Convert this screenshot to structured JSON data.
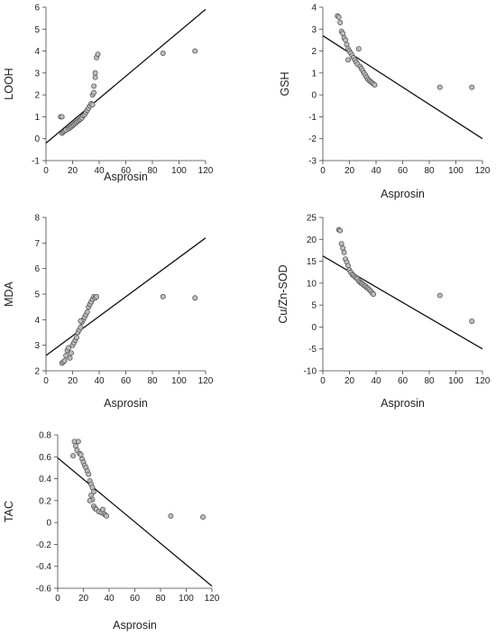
{
  "chart_data": [
    {
      "type": "scatter",
      "xlabel": "Asprosin",
      "ylabel": "LOOH",
      "xlim": [
        0,
        120
      ],
      "ylim": [
        -1,
        6
      ],
      "xticks": [
        0,
        20,
        40,
        60,
        80,
        100,
        120
      ],
      "yticks": [
        -1,
        0,
        1,
        2,
        3,
        4,
        5,
        6
      ],
      "fit_line": [
        [
          0,
          -0.2
        ],
        [
          120,
          5.9
        ]
      ],
      "points": [
        [
          11,
          1.0
        ],
        [
          12,
          1.0
        ],
        [
          12,
          0.25
        ],
        [
          13,
          0.3
        ],
        [
          14,
          0.35
        ],
        [
          15,
          0.4
        ],
        [
          17,
          0.45
        ],
        [
          18,
          0.5
        ],
        [
          19,
          0.55
        ],
        [
          20,
          0.6
        ],
        [
          21,
          0.65
        ],
        [
          22,
          0.7
        ],
        [
          23,
          0.75
        ],
        [
          24,
          0.8
        ],
        [
          25,
          0.85
        ],
        [
          26,
          0.9
        ],
        [
          27,
          0.95
        ],
        [
          28,
          1.05
        ],
        [
          29,
          1.1
        ],
        [
          30,
          1.2
        ],
        [
          31,
          1.3
        ],
        [
          32,
          1.4
        ],
        [
          33,
          1.5
        ],
        [
          34,
          1.6
        ],
        [
          35,
          2.0
        ],
        [
          35,
          1.55
        ],
        [
          36,
          2.1
        ],
        [
          36,
          2.4
        ],
        [
          37,
          2.8
        ],
        [
          37,
          3.0
        ],
        [
          38,
          3.7
        ],
        [
          39,
          3.85
        ],
        [
          88,
          3.9
        ],
        [
          112,
          4.0
        ]
      ]
    },
    {
      "type": "scatter",
      "xlabel": "Asprosin",
      "ylabel": "GSH",
      "xlim": [
        0,
        120
      ],
      "ylim": [
        -3,
        4
      ],
      "xticks": [
        0,
        20,
        40,
        60,
        80,
        100,
        120
      ],
      "yticks": [
        -3,
        -2,
        -1,
        0,
        1,
        2,
        3,
        4
      ],
      "fit_line": [
        [
          0,
          2.7
        ],
        [
          120,
          -2.0
        ]
      ],
      "points": [
        [
          11,
          3.6
        ],
        [
          12,
          3.55
        ],
        [
          13,
          3.3
        ],
        [
          14,
          2.9
        ],
        [
          15,
          2.8
        ],
        [
          16,
          2.6
        ],
        [
          17,
          2.5
        ],
        [
          18,
          2.3
        ],
        [
          19,
          2.1
        ],
        [
          20,
          2.0
        ],
        [
          21,
          1.9
        ],
        [
          22,
          1.8
        ],
        [
          23,
          1.7
        ],
        [
          24,
          1.6
        ],
        [
          25,
          1.5
        ],
        [
          26,
          1.4
        ],
        [
          27,
          2.1
        ],
        [
          28,
          1.3
        ],
        [
          29,
          1.2
        ],
        [
          30,
          1.1
        ],
        [
          31,
          1.0
        ],
        [
          32,
          0.9
        ],
        [
          33,
          0.8
        ],
        [
          34,
          0.7
        ],
        [
          35,
          0.65
        ],
        [
          36,
          0.6
        ],
        [
          37,
          0.55
        ],
        [
          38,
          0.5
        ],
        [
          39,
          0.45
        ],
        [
          19,
          1.6
        ],
        [
          88,
          0.35
        ],
        [
          112,
          0.35
        ]
      ]
    },
    {
      "type": "scatter",
      "xlabel": "Asprosin",
      "ylabel": "MDA",
      "xlim": [
        0,
        120
      ],
      "ylim": [
        2,
        8
      ],
      "xticks": [
        0,
        20,
        40,
        60,
        80,
        100,
        120
      ],
      "yticks": [
        2,
        3,
        4,
        5,
        6,
        7,
        8
      ],
      "fit_line": [
        [
          0,
          2.6
        ],
        [
          120,
          7.2
        ]
      ],
      "points": [
        [
          12,
          2.3
        ],
        [
          13,
          2.35
        ],
        [
          14,
          2.4
        ],
        [
          15,
          2.6
        ],
        [
          16,
          2.8
        ],
        [
          17,
          2.9
        ],
        [
          18,
          2.5
        ],
        [
          19,
          2.7
        ],
        [
          20,
          3.0
        ],
        [
          21,
          3.1
        ],
        [
          22,
          3.2
        ],
        [
          23,
          3.3
        ],
        [
          24,
          3.5
        ],
        [
          25,
          3.6
        ],
        [
          26,
          3.7
        ],
        [
          27,
          3.9
        ],
        [
          28,
          4.0
        ],
        [
          29,
          4.1
        ],
        [
          30,
          4.2
        ],
        [
          31,
          4.3
        ],
        [
          32,
          4.5
        ],
        [
          33,
          4.6
        ],
        [
          34,
          4.7
        ],
        [
          35,
          4.8
        ],
        [
          36,
          4.9
        ],
        [
          37,
          4.85
        ],
        [
          38,
          4.9
        ],
        [
          26,
          3.95
        ],
        [
          88,
          4.9
        ],
        [
          112,
          4.85
        ]
      ]
    },
    {
      "type": "scatter",
      "xlabel": "Asprosin",
      "ylabel": "Cu/Zn-SOD",
      "xlim": [
        0,
        120
      ],
      "ylim": [
        -10,
        25
      ],
      "xticks": [
        0,
        20,
        40,
        60,
        80,
        100,
        120
      ],
      "yticks": [
        -10,
        -5,
        0,
        5,
        10,
        15,
        20,
        25
      ],
      "fit_line": [
        [
          0,
          16.2
        ],
        [
          120,
          -5.0
        ]
      ],
      "points": [
        [
          12,
          22.2
        ],
        [
          13,
          22.0
        ],
        [
          14,
          19.0
        ],
        [
          15,
          18.0
        ],
        [
          16,
          17.0
        ],
        [
          17,
          15.5
        ],
        [
          18,
          14.8
        ],
        [
          19,
          14.0
        ],
        [
          20,
          13.0
        ],
        [
          21,
          12.5
        ],
        [
          22,
          12.0
        ],
        [
          23,
          11.8
        ],
        [
          24,
          11.5
        ],
        [
          25,
          11.2
        ],
        [
          26,
          11.0
        ],
        [
          27,
          10.5
        ],
        [
          28,
          10.2
        ],
        [
          29,
          10.0
        ],
        [
          30,
          9.8
        ],
        [
          31,
          9.5
        ],
        [
          32,
          9.3
        ],
        [
          33,
          9.0
        ],
        [
          34,
          8.8
        ],
        [
          35,
          8.5
        ],
        [
          36,
          8.2
        ],
        [
          37,
          7.8
        ],
        [
          38,
          7.5
        ],
        [
          88,
          7.2
        ],
        [
          112,
          1.3
        ]
      ]
    },
    {
      "type": "scatter",
      "xlabel": "Asprosin",
      "ylabel": "TAC",
      "xlim": [
        0,
        120
      ],
      "ylim": [
        -0.6,
        0.8
      ],
      "xticks": [
        0,
        20,
        40,
        60,
        80,
        100,
        120
      ],
      "yticks": [
        -0.6,
        -0.4,
        -0.2,
        0,
        0.2,
        0.4,
        0.6,
        0.8
      ],
      "fit_line": [
        [
          0,
          0.59
        ],
        [
          120,
          -0.58
        ]
      ],
      "points": [
        [
          13,
          0.74
        ],
        [
          14,
          0.7
        ],
        [
          15,
          0.66
        ],
        [
          16,
          0.74
        ],
        [
          17,
          0.63
        ],
        [
          18,
          0.62
        ],
        [
          12,
          0.61
        ],
        [
          19,
          0.58
        ],
        [
          20,
          0.55
        ],
        [
          21,
          0.52
        ],
        [
          22,
          0.5
        ],
        [
          23,
          0.47
        ],
        [
          24,
          0.44
        ],
        [
          25,
          0.38
        ],
        [
          26,
          0.35
        ],
        [
          27,
          0.32
        ],
        [
          28,
          0.28
        ],
        [
          26,
          0.25
        ],
        [
          27,
          0.21
        ],
        [
          28,
          0.15
        ],
        [
          29,
          0.13
        ],
        [
          30,
          0.12
        ],
        [
          32,
          0.1
        ],
        [
          34,
          0.09
        ],
        [
          35,
          0.12
        ],
        [
          36,
          0.08
        ],
        [
          37,
          0.07
        ],
        [
          38,
          0.06
        ],
        [
          25,
          0.2
        ],
        [
          88,
          0.06
        ],
        [
          113,
          0.05
        ]
      ]
    }
  ],
  "colors": {
    "marker_fill": "#bdbdbd",
    "marker_stroke": "#4a4a4a",
    "line": "#111111",
    "axis": "#444444"
  }
}
